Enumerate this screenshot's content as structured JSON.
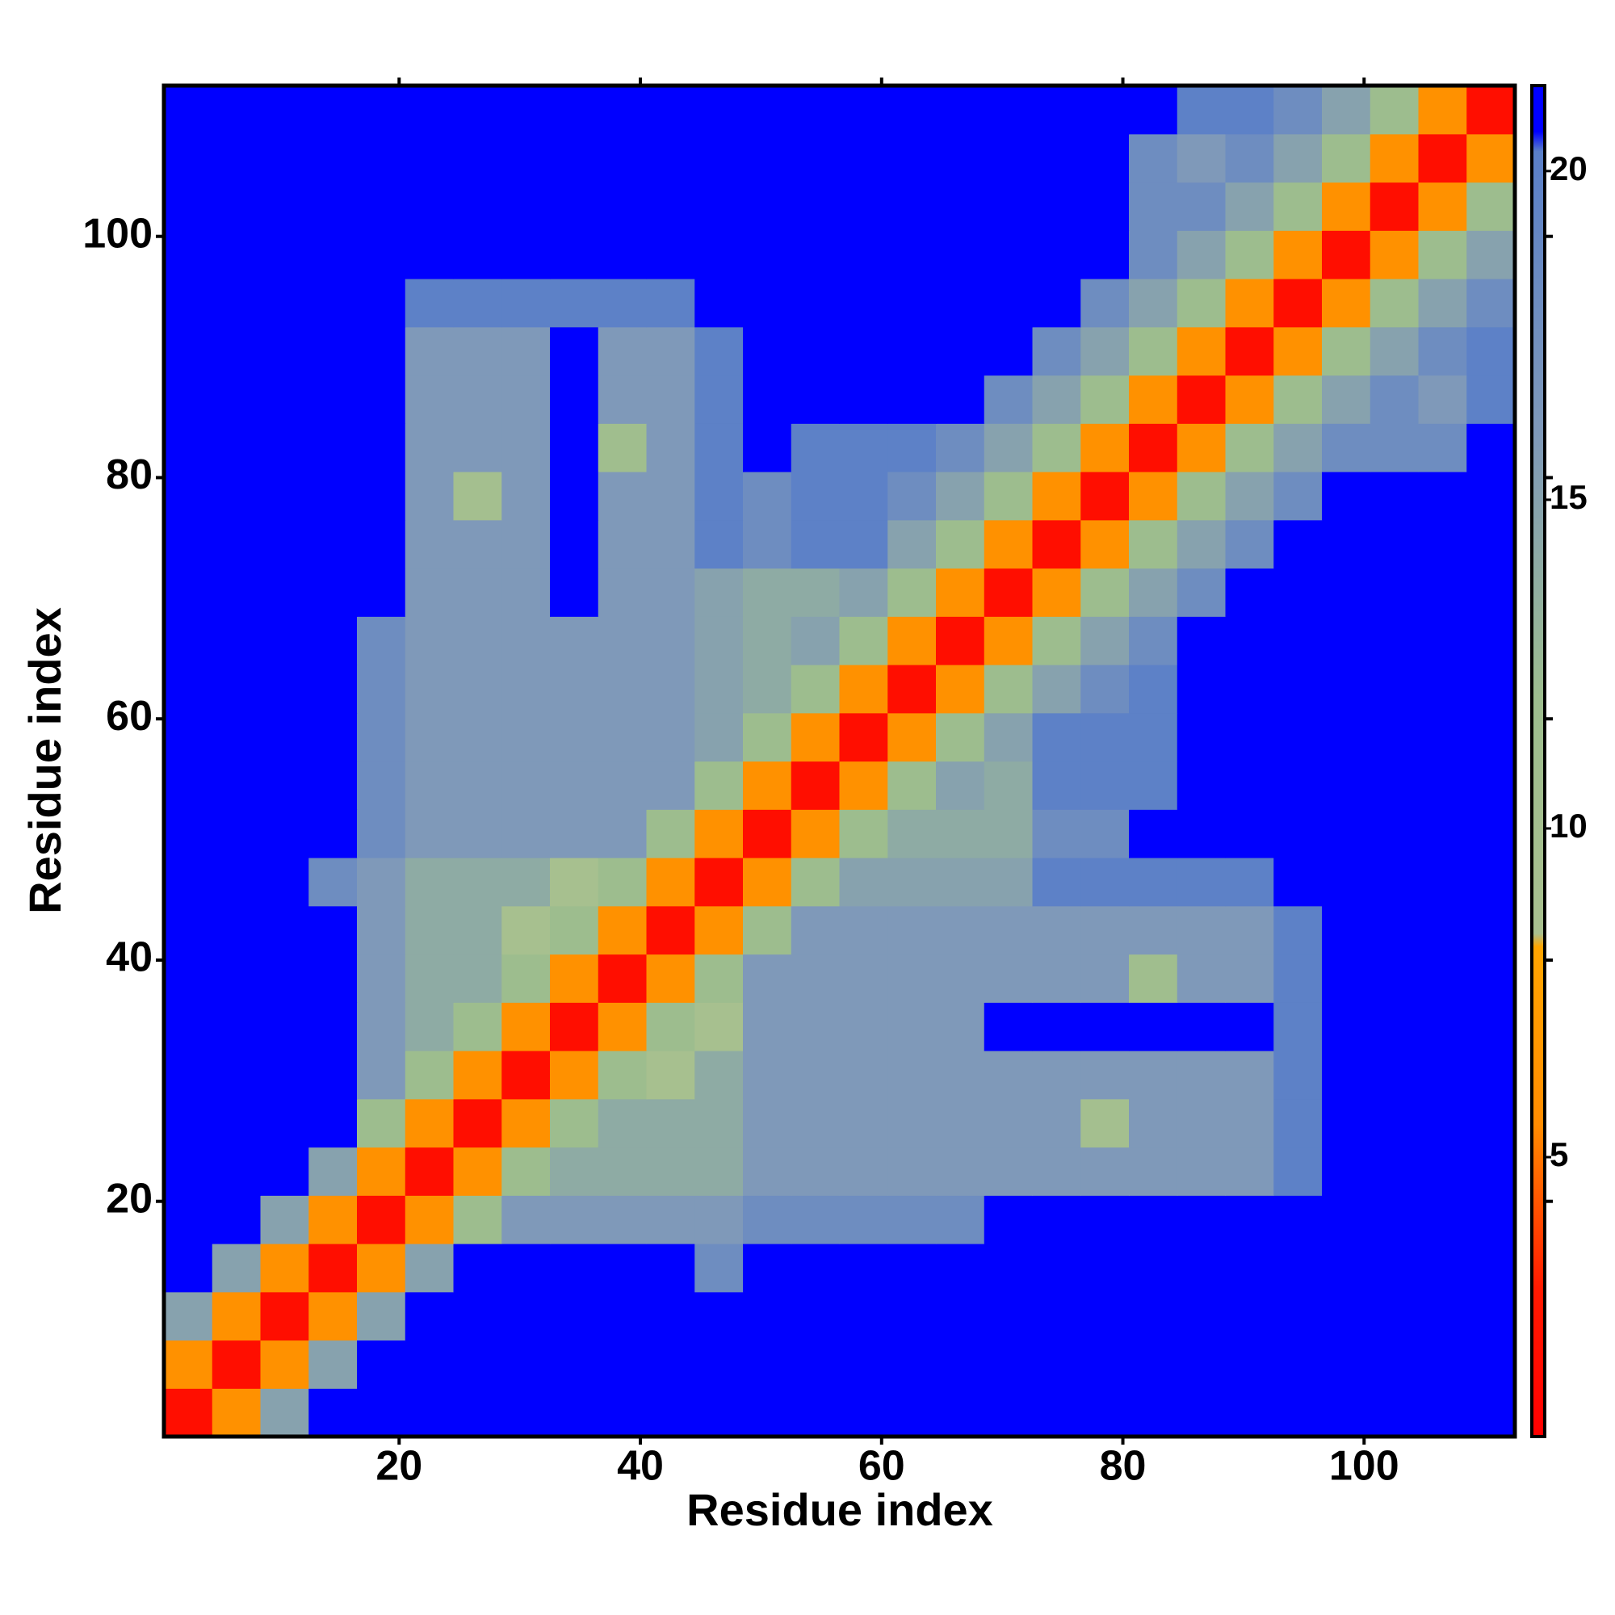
{
  "chart_data": {
    "type": "heatmap",
    "xlabel": "Residue index",
    "ylabel": "Residue index",
    "xlim": [
      0.5,
      112.5
    ],
    "ylim": [
      0.5,
      112.5
    ],
    "xticks": [
      20,
      40,
      60,
      80,
      100
    ],
    "yticks": [
      20,
      40,
      60,
      80,
      100
    ],
    "zlim": [
      0.75,
      21.3
    ],
    "zticks": [
      5,
      10,
      15,
      20
    ],
    "colorscale": [
      [
        0.75,
        "#ff0000"
      ],
      [
        3,
        "#ff1a00"
      ],
      [
        5.5,
        "#ff8c00"
      ],
      [
        8.2,
        "#ffa500"
      ],
      [
        8.4,
        "#a9c08f"
      ],
      [
        12,
        "#9dbd8e"
      ],
      [
        16,
        "#7f99b9"
      ],
      [
        20.3,
        "#5a7fc8"
      ],
      [
        20.6,
        "#0000ff"
      ],
      [
        21.3,
        "#0000ff"
      ]
    ],
    "xbins": [
      0.5,
      4.5,
      8.5,
      12.5,
      16.5,
      20.5,
      24.5,
      28.5,
      32.5,
      36.5,
      40.5,
      44.5,
      48.5,
      52.5,
      56.5,
      60.5,
      64.5,
      68.5,
      72.5,
      76.5,
      80.5,
      84.5,
      88.5,
      92.5,
      96.5,
      100.5,
      104.5,
      108.5,
      112.5
    ],
    "ybins": [
      0.5,
      4.5,
      8.5,
      12.5,
      16.5,
      20.5,
      24.5,
      28.5,
      32.5,
      36.5,
      40.5,
      44.5,
      48.5,
      52.5,
      56.5,
      60.5,
      64.5,
      68.5,
      72.5,
      76.5,
      80.5,
      84.5,
      88.5,
      92.5,
      96.5,
      100.5,
      104.5,
      108.5,
      112.5
    ],
    "z": [
      [
        2,
        6,
        15,
        21,
        21,
        21,
        21,
        21,
        21,
        21,
        21,
        21,
        21,
        21,
        21,
        21,
        21,
        21,
        21,
        21,
        21,
        21,
        21,
        21,
        21,
        21,
        21,
        21
      ],
      [
        6,
        2,
        6,
        15,
        21,
        21,
        21,
        21,
        21,
        21,
        21,
        21,
        21,
        21,
        21,
        21,
        21,
        21,
        21,
        21,
        21,
        21,
        21,
        21,
        21,
        21,
        21,
        21
      ],
      [
        15,
        6,
        2,
        6,
        15,
        21,
        21,
        21,
        21,
        21,
        21,
        21,
        21,
        21,
        21,
        21,
        21,
        21,
        21,
        21,
        21,
        21,
        21,
        21,
        21,
        21,
        21,
        21
      ],
      [
        21,
        15,
        6,
        2,
        6,
        15,
        21,
        21,
        21,
        21,
        21,
        18,
        21,
        21,
        21,
        21,
        21,
        21,
        21,
        21,
        21,
        21,
        21,
        21,
        21,
        21,
        21,
        21
      ],
      [
        21,
        21,
        15,
        6,
        2,
        6,
        12,
        16,
        16,
        16,
        16,
        16,
        18,
        18,
        18,
        18,
        18,
        21,
        21,
        21,
        21,
        21,
        21,
        21,
        21,
        21,
        21,
        21
      ],
      [
        21,
        21,
        21,
        15,
        6,
        2,
        6,
        12,
        14,
        14,
        14,
        14,
        16,
        16,
        16,
        16,
        16,
        16,
        16,
        16,
        16,
        16,
        16,
        20,
        21,
        21,
        21,
        21
      ],
      [
        21,
        21,
        21,
        21,
        12,
        6,
        2,
        6,
        12,
        14,
        14,
        14,
        16,
        16,
        16,
        16,
        16,
        16,
        16,
        10,
        16,
        16,
        16,
        20,
        21,
        21,
        21,
        21
      ],
      [
        21,
        21,
        21,
        21,
        16,
        12,
        6,
        2,
        6,
        12,
        9,
        14,
        16,
        16,
        16,
        16,
        16,
        16,
        16,
        16,
        16,
        16,
        16,
        20,
        21,
        21,
        21,
        21
      ],
      [
        21,
        21,
        21,
        21,
        16,
        14,
        12,
        6,
        2,
        6,
        12,
        9,
        16,
        16,
        16,
        16,
        16,
        21,
        21,
        21,
        21,
        21,
        21,
        20,
        21,
        21,
        21,
        21
      ],
      [
        21,
        21,
        21,
        21,
        16,
        14,
        14,
        12,
        6,
        2,
        6,
        12,
        16,
        16,
        16,
        16,
        16,
        16,
        16,
        16,
        11,
        16,
        16,
        20,
        21,
        21,
        21,
        21
      ],
      [
        21,
        21,
        21,
        21,
        16,
        14,
        14,
        9,
        12,
        6,
        2,
        6,
        12,
        16,
        16,
        16,
        16,
        16,
        16,
        16,
        16,
        16,
        16,
        20,
        21,
        21,
        21,
        21
      ],
      [
        21,
        21,
        21,
        18,
        16,
        14,
        14,
        14,
        9,
        12,
        6,
        2,
        6,
        12,
        15,
        15,
        15,
        15,
        20,
        20,
        20,
        20,
        20,
        21,
        21,
        21,
        21,
        21
      ],
      [
        21,
        21,
        21,
        21,
        18,
        16,
        16,
        16,
        16,
        16,
        12,
        6,
        2,
        6,
        12,
        14,
        14,
        14,
        18,
        18,
        21,
        21,
        21,
        21,
        21,
        21,
        21,
        21
      ],
      [
        21,
        21,
        21,
        21,
        18,
        16,
        16,
        16,
        16,
        16,
        16,
        12,
        6,
        2,
        6,
        12,
        15,
        14,
        20,
        20,
        20,
        21,
        21,
        21,
        21,
        21,
        21,
        21
      ],
      [
        21,
        21,
        21,
        21,
        18,
        16,
        16,
        16,
        16,
        16,
        16,
        15,
        12,
        6,
        2,
        6,
        12,
        15,
        20,
        20,
        20,
        21,
        21,
        21,
        21,
        21,
        21,
        21
      ],
      [
        21,
        21,
        21,
        21,
        18,
        16,
        16,
        16,
        16,
        16,
        16,
        15,
        14,
        12,
        6,
        2,
        6,
        12,
        15,
        18,
        20,
        21,
        21,
        21,
        21,
        21,
        21,
        21
      ],
      [
        21,
        21,
        21,
        21,
        18,
        16,
        16,
        16,
        16,
        16,
        16,
        15,
        14,
        15,
        12,
        6,
        2,
        6,
        12,
        15,
        18,
        21,
        21,
        21,
        21,
        21,
        21,
        21
      ],
      [
        21,
        21,
        21,
        21,
        21,
        16,
        16,
        16,
        21,
        16,
        16,
        15,
        14,
        14,
        15,
        12,
        6,
        2,
        6,
        12,
        15,
        18,
        21,
        21,
        21,
        21,
        21,
        21
      ],
      [
        21,
        21,
        21,
        21,
        21,
        16,
        16,
        16,
        21,
        16,
        16,
        20,
        18,
        20,
        20,
        15,
        12,
        6,
        2,
        6,
        12,
        15,
        18,
        21,
        21,
        21,
        21,
        21
      ],
      [
        21,
        21,
        21,
        21,
        21,
        16,
        10,
        16,
        21,
        16,
        16,
        20,
        18,
        20,
        20,
        18,
        15,
        12,
        6,
        2,
        6,
        12,
        15,
        18,
        21,
        21,
        21,
        21
      ],
      [
        21,
        21,
        21,
        21,
        21,
        16,
        16,
        16,
        21,
        11,
        16,
        20,
        21,
        20,
        20,
        20,
        18,
        15,
        12,
        6,
        2,
        6,
        12,
        15,
        18,
        18,
        18,
        21
      ],
      [
        21,
        21,
        21,
        21,
        21,
        16,
        16,
        16,
        21,
        16,
        16,
        20,
        21,
        21,
        21,
        21,
        21,
        18,
        15,
        12,
        6,
        2,
        6,
        12,
        15,
        18,
        16,
        20
      ],
      [
        21,
        21,
        21,
        21,
        21,
        16,
        16,
        16,
        21,
        16,
        16,
        20,
        21,
        21,
        21,
        21,
        21,
        21,
        18,
        15,
        12,
        6,
        2,
        6,
        12,
        15,
        18,
        20
      ],
      [
        21,
        21,
        21,
        21,
        21,
        20,
        20,
        20,
        20,
        20,
        20,
        21,
        21,
        21,
        21,
        21,
        21,
        21,
        21,
        18,
        15,
        12,
        6,
        2,
        6,
        12,
        15,
        18
      ],
      [
        21,
        21,
        21,
        21,
        21,
        21,
        21,
        21,
        21,
        21,
        21,
        21,
        21,
        21,
        21,
        21,
        21,
        21,
        21,
        21,
        18,
        15,
        12,
        6,
        2,
        6,
        12,
        15
      ],
      [
        21,
        21,
        21,
        21,
        21,
        21,
        21,
        21,
        21,
        21,
        21,
        21,
        21,
        21,
        21,
        21,
        21,
        21,
        21,
        21,
        18,
        18,
        15,
        12,
        6,
        2,
        6,
        12
      ],
      [
        21,
        21,
        21,
        21,
        21,
        21,
        21,
        21,
        21,
        21,
        21,
        21,
        21,
        21,
        21,
        21,
        21,
        21,
        21,
        21,
        18,
        16,
        18,
        15,
        12,
        6,
        2,
        6
      ],
      [
        21,
        21,
        21,
        21,
        21,
        21,
        21,
        21,
        21,
        21,
        21,
        21,
        21,
        21,
        21,
        21,
        21,
        21,
        21,
        21,
        21,
        20,
        20,
        18,
        15,
        12,
        6,
        2
      ]
    ]
  }
}
